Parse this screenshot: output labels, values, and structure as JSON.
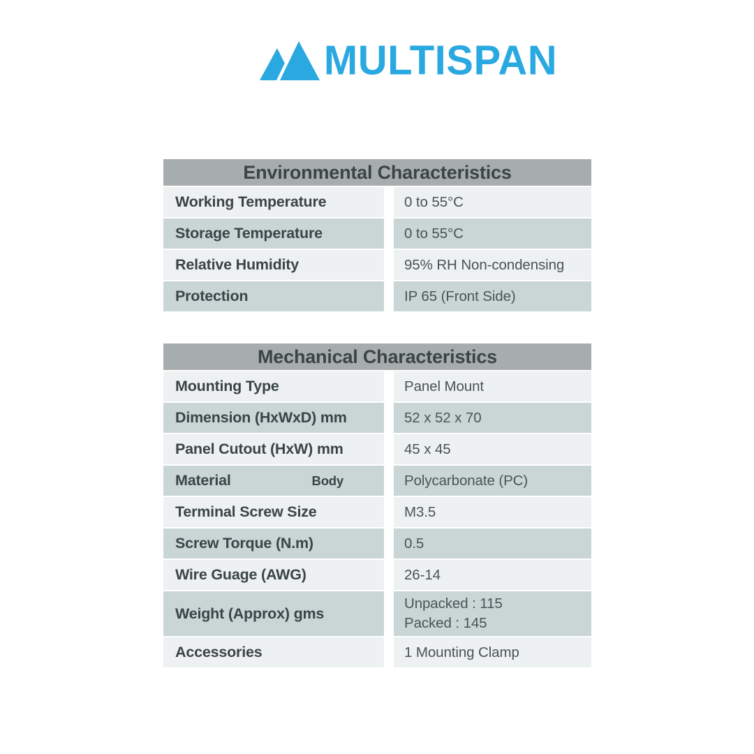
{
  "logo": {
    "text": "MULTISPAN",
    "mark": "twin-mountain-peaks-icon"
  },
  "colors": {
    "logo_blue": "#2AA9E1",
    "header_gray": "#A6ADAC",
    "row_light": "#EDF1F2",
    "row_dark": "#C9D6D5",
    "text_dark": "#3B4447",
    "text_mid": "#495456"
  },
  "tables": [
    {
      "title": "Environmental Characteristics",
      "rows": [
        {
          "label": "Working Temperature",
          "value": "0 to 55°C"
        },
        {
          "label": "Storage Temperature",
          "value": "0 to 55°C"
        },
        {
          "label": "Relative Humidity",
          "value": "95% RH Non-condensing"
        },
        {
          "label": "Protection",
          "value": "IP 65 (Front Side)"
        }
      ]
    },
    {
      "title": "Mechanical Characteristics",
      "rows": [
        {
          "label": "Mounting Type",
          "value": "Panel Mount"
        },
        {
          "label": "Dimension (HxWxD) mm",
          "value": "52 x 52 x 70"
        },
        {
          "label": "Panel Cutout (HxW) mm",
          "value": "45 x 45"
        },
        {
          "label": "Material",
          "sublabel": "Body",
          "value": "Polycarbonate (PC)"
        },
        {
          "label": "Terminal Screw Size",
          "value": "M3.5"
        },
        {
          "label": "Screw Torque (N.m)",
          "value": "0.5"
        },
        {
          "label": "Wire Guage (AWG)",
          "value": "26-14"
        },
        {
          "label": "Weight (Approx) gms",
          "value_lines": [
            "Unpacked : 115",
            "Packed : 145"
          ]
        },
        {
          "label": "Accessories",
          "value": "1 Mounting Clamp"
        }
      ]
    }
  ]
}
